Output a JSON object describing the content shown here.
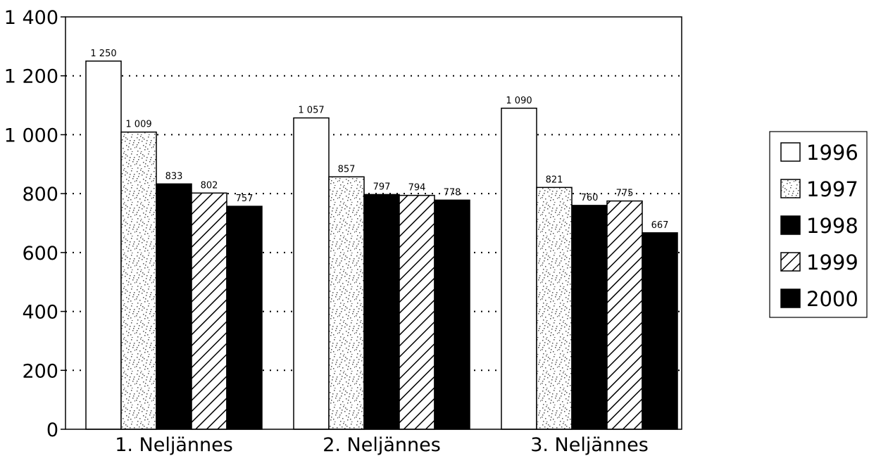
{
  "chart_data": {
    "type": "bar",
    "categories": [
      "1. Neljännes",
      "2. Neljännes",
      "3. Neljännes"
    ],
    "series": [
      {
        "name": "1996",
        "values": [
          1250,
          1057,
          1090
        ],
        "labels": [
          "1 250",
          "1 057",
          "1 090"
        ],
        "fill": "white"
      },
      {
        "name": "1997",
        "values": [
          1009,
          857,
          821
        ],
        "labels": [
          "1 009",
          "857",
          "821"
        ],
        "fill": "speckle"
      },
      {
        "name": "1998",
        "values": [
          833,
          797,
          760
        ],
        "labels": [
          "833",
          "797",
          "760"
        ],
        "fill": "black"
      },
      {
        "name": "1999",
        "values": [
          802,
          794,
          775
        ],
        "labels": [
          "802",
          "794",
          "775"
        ],
        "fill": "hatch"
      },
      {
        "name": "2000",
        "values": [
          757,
          778,
          667
        ],
        "labels": [
          "757",
          "778",
          "667"
        ],
        "fill": "black"
      }
    ],
    "yticks": [
      0,
      200,
      400,
      600,
      800,
      1000,
      1200,
      1400
    ],
    "ytick_labels": [
      "0",
      "200",
      "400",
      "600",
      "800",
      "1 000",
      "1 200",
      "1 400"
    ],
    "ylim": [
      0,
      1400
    ],
    "grid": "horizontal-dotted",
    "legend_position": "right",
    "colors": {
      "ink": "#000000",
      "paper": "#ffffff",
      "speckle": "#6e6e6e"
    }
  }
}
